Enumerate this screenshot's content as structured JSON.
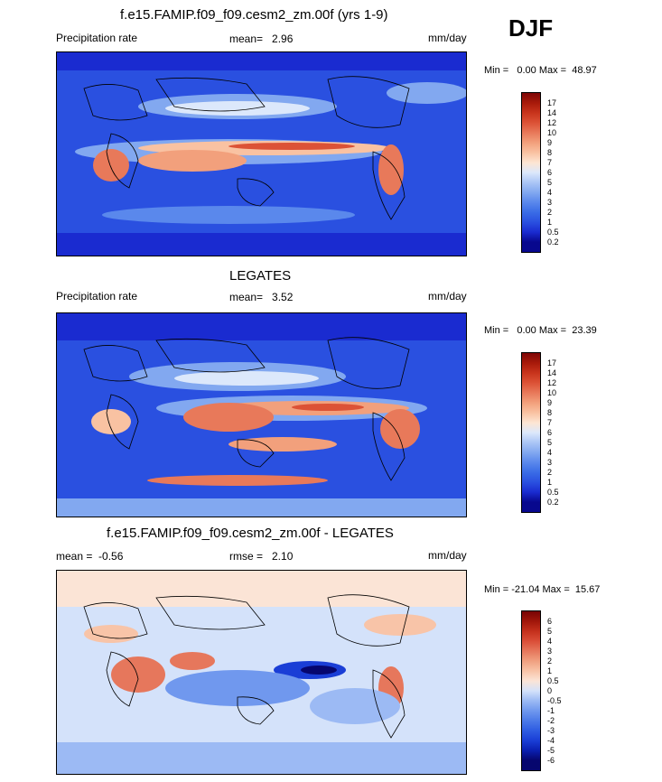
{
  "season": "DJF",
  "panels": [
    {
      "title": "f.e15.FAMIP.f09_f09.cesm2_zm.00f (yrs 1-9)",
      "left_label": "Precipitation rate",
      "mid_label": "mean=   2.96",
      "units": "mm/day",
      "minmax": "Min =   0.00 Max =  48.97",
      "colorbar_labels": [
        "17",
        "14",
        "12",
        "10",
        "9",
        "8",
        "7",
        "6",
        "5",
        "4",
        "3",
        "2",
        "1",
        "0.5",
        "0.2"
      ]
    },
    {
      "title": "LEGATES",
      "left_label": "Precipitation rate",
      "mid_label": "mean=   3.52",
      "units": "mm/day",
      "minmax": "Min =   0.00 Max =  23.39",
      "colorbar_labels": [
        "17",
        "14",
        "12",
        "10",
        "9",
        "8",
        "7",
        "6",
        "5",
        "4",
        "3",
        "2",
        "1",
        "0.5",
        "0.2"
      ]
    },
    {
      "title": "f.e15.FAMIP.f09_f09.cesm2_zm.00f - LEGATES",
      "left_label": "mean =  -0.56",
      "mid_label": "rmse =   2.10",
      "units": "mm/day",
      "minmax": "Min = -21.04 Max =  15.67",
      "colorbar_labels": [
        "6",
        "5",
        "4",
        "3",
        "2",
        "1",
        "0.5",
        "0",
        "-0.5",
        "-1",
        "-2",
        "-3",
        "-4",
        "-5",
        "-6"
      ]
    }
  ],
  "chart_data": [
    {
      "type": "heatmap",
      "title": "f.e15.FAMIP.f09_f09.cesm2_zm.00f (yrs 1-9)",
      "variable": "Precipitation rate",
      "units": "mm/day",
      "mean": 2.96,
      "min": 0.0,
      "max": 48.97,
      "contour_levels": [
        0.2,
        0.5,
        1,
        2,
        3,
        4,
        5,
        6,
        7,
        8,
        9,
        10,
        12,
        14,
        17
      ],
      "colors": [
        "#08088e",
        "#1a2bd0",
        "#2a50e0",
        "#3a6ce6",
        "#5a88ec",
        "#82a8f0",
        "#acc6f6",
        "#dce8fb",
        "#fde5d2",
        "#f9c2a2",
        "#f2a07c",
        "#e8795a",
        "#dc5236",
        "#c8341c",
        "#a81a0a",
        "#7e0606"
      ]
    },
    {
      "type": "heatmap",
      "title": "LEGATES",
      "variable": "Precipitation rate",
      "units": "mm/day",
      "mean": 3.52,
      "min": 0.0,
      "max": 23.39,
      "contour_levels": [
        0.2,
        0.5,
        1,
        2,
        3,
        4,
        5,
        6,
        7,
        8,
        9,
        10,
        12,
        14,
        17
      ],
      "colors": [
        "#08088e",
        "#1a2bd0",
        "#2a50e0",
        "#3a6ce6",
        "#5a88ec",
        "#82a8f0",
        "#acc6f6",
        "#dce8fb",
        "#fde5d2",
        "#f9c2a2",
        "#f2a07c",
        "#e8795a",
        "#dc5236",
        "#c8341c",
        "#a81a0a",
        "#7e0606"
      ]
    },
    {
      "type": "heatmap",
      "title": "f.e15.FAMIP.f09_f09.cesm2_zm.00f - LEGATES",
      "units": "mm/day",
      "mean": -0.56,
      "rmse": 2.1,
      "min": -21.04,
      "max": 15.67,
      "contour_levels": [
        -6,
        -5,
        -4,
        -3,
        -2,
        -1,
        -0.5,
        0,
        0.5,
        1,
        2,
        3,
        4,
        5,
        6
      ],
      "colors": [
        "#06066e",
        "#0a1fb0",
        "#1a3ed6",
        "#2e5ce2",
        "#4c7ae8",
        "#7098ee",
        "#9cbaf4",
        "#d4e2fa",
        "#fbe4d6",
        "#f8c4a8",
        "#f0a080",
        "#e6775c",
        "#da4e38",
        "#c4301c",
        "#a0160a",
        "#780404"
      ]
    }
  ]
}
